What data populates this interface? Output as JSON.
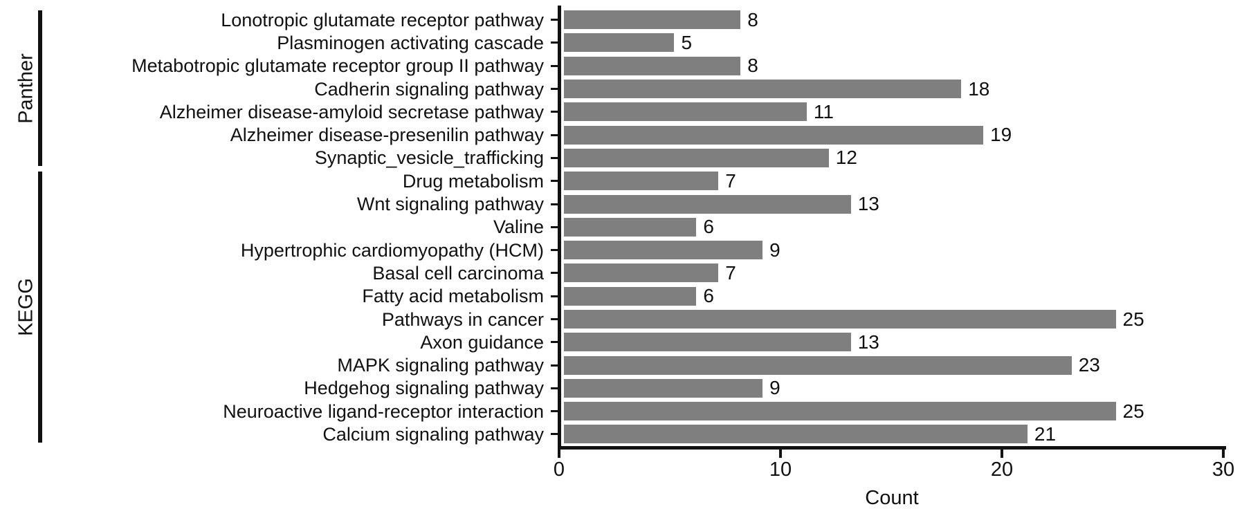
{
  "chart_data": {
    "type": "bar",
    "orientation": "horizontal",
    "xlabel": "Count",
    "xlim": [
      0,
      30
    ],
    "x_ticks": [
      "0",
      "10",
      "20",
      "30"
    ],
    "bar_color": "#7f7f7f",
    "axis_color": "#111111",
    "legend_position": "none",
    "grid": false,
    "groups": [
      {
        "name": "Panther",
        "rows": [
          {
            "label": "Lonotropic glutamate receptor pathway",
            "value": 8
          },
          {
            "label": "Plasminogen activating cascade",
            "value": 5
          },
          {
            "label": "Metabotropic glutamate receptor group II pathway",
            "value": 8
          },
          {
            "label": "Cadherin signaling pathway",
            "value": 18
          },
          {
            "label": "Alzheimer disease-amyloid secretase pathway",
            "value": 11
          },
          {
            "label": "Alzheimer disease-presenilin pathway",
            "value": 19
          },
          {
            "label": "Synaptic_vesicle_trafficking",
            "value": 12
          }
        ]
      },
      {
        "name": "KEGG",
        "rows": [
          {
            "label": "Drug metabolism",
            "value": 7
          },
          {
            "label": "Wnt signaling pathway",
            "value": 13
          },
          {
            "label": "Valine",
            "value": 6
          },
          {
            "label": "Hypertrophic cardiomyopathy (HCM)",
            "value": 9
          },
          {
            "label": "Basal cell carcinoma",
            "value": 7
          },
          {
            "label": "Fatty acid metabolism",
            "value": 6
          },
          {
            "label": "Pathways in cancer",
            "value": 25
          },
          {
            "label": "Axon guidance",
            "value": 13
          },
          {
            "label": "MAPK signaling pathway",
            "value": 23
          },
          {
            "label": "Hedgehog signaling pathway",
            "value": 9
          },
          {
            "label": "Neuroactive ligand-receptor interaction",
            "value": 25
          },
          {
            "label": "Calcium signaling pathway",
            "value": 21
          }
        ]
      }
    ]
  }
}
